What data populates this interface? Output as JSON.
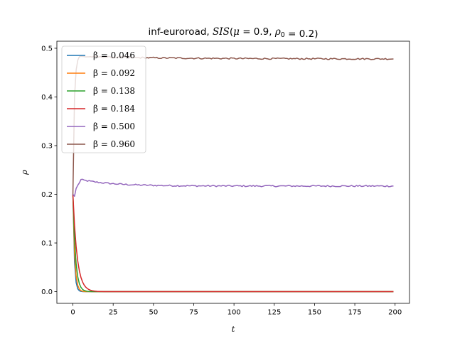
{
  "chart_data": {
    "type": "line",
    "title": "inf-euroroad, SIS(μ = 0.9, ρ₀ = 0.2)",
    "xlabel": "t",
    "ylabel": "ρ",
    "xlim": [
      -9.95,
      208.95
    ],
    "ylim": [
      -0.024,
      0.5145
    ],
    "xticks": [
      0,
      25,
      50,
      75,
      100,
      125,
      150,
      175,
      200
    ],
    "yticks": [
      0.0,
      0.1,
      0.2,
      0.3,
      0.4,
      0.5
    ],
    "xtick_labels": [
      "0",
      "25",
      "50",
      "75",
      "100",
      "125",
      "150",
      "175",
      "200"
    ],
    "ytick_labels": [
      "0.0",
      "0.1",
      "0.2",
      "0.3",
      "0.4",
      "0.5"
    ],
    "grid": false,
    "legend_position": "upper-left",
    "series": [
      {
        "name": "β = 0.046",
        "color": "#1f77b4",
        "model": "decay",
        "start": 0.2,
        "end": 0.0,
        "tau": 0.85,
        "noise": 0,
        "x_end": 199
      },
      {
        "name": "β = 0.092",
        "color": "#ff7f0e",
        "model": "decay",
        "start": 0.2,
        "end": 0.0,
        "tau": 1.1,
        "noise": 0,
        "x_end": 199
      },
      {
        "name": "β = 0.138",
        "color": "#2ca02c",
        "model": "decay",
        "start": 0.2,
        "end": 0.0,
        "tau": 1.6,
        "noise": 0,
        "x_end": 199
      },
      {
        "name": "β = 0.184",
        "color": "#d62728",
        "model": "decay",
        "start": 0.2,
        "end": 0.0,
        "tau": 2.6,
        "noise": 0,
        "x_end": 199
      },
      {
        "name": "β = 0.500",
        "color": "#9467bd",
        "model": "sis_mid",
        "start": 0.2,
        "end": 0.217,
        "peak": 0.23,
        "noise": 0.0015,
        "x_end": 199
      },
      {
        "name": "β = 0.960",
        "color": "#8c564b",
        "model": "sis_high",
        "start": 0.2,
        "end": 0.478,
        "peak": 0.483,
        "noise": 0.0015,
        "x_end": 199
      }
    ]
  }
}
